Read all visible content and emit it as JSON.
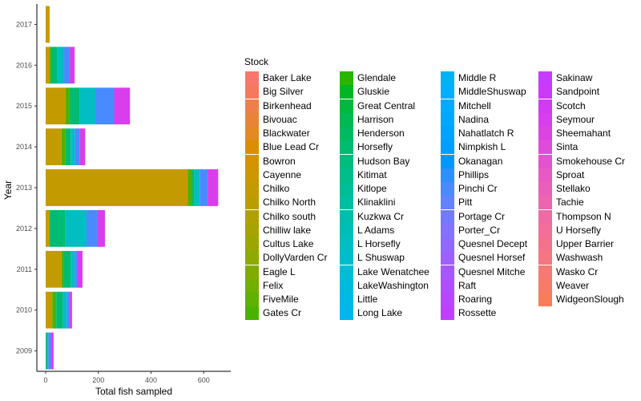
{
  "chart_data": {
    "type": "bar",
    "orientation": "horizontal",
    "stacked": true,
    "xlabel": "Total fish sampled",
    "ylabel": "Year",
    "xlim": [
      0,
      860
    ],
    "xticks": [
      0,
      200,
      400,
      600,
      800
    ],
    "categories": [
      "2009",
      "2010",
      "2011",
      "2012",
      "2013",
      "2014",
      "2015",
      "2016",
      "2017"
    ],
    "grid": false,
    "legend": {
      "title": "Stock",
      "position": "right",
      "columns": 4
    },
    "series": [
      {
        "name": "Baker Lake",
        "color": "#F8766D",
        "values": [
          0,
          0,
          0,
          0,
          0,
          0,
          0,
          0,
          0
        ]
      },
      {
        "name": "Big Silver",
        "color": "#F47A5B",
        "values": [
          0,
          0,
          0,
          0,
          0,
          0,
          0,
          0,
          0
        ]
      },
      {
        "name": "Birkenhead",
        "color": "#EF7F4A",
        "values": [
          0,
          0,
          0,
          0,
          0,
          0,
          0,
          0,
          0
        ]
      },
      {
        "name": "Bivouac",
        "color": "#E98437",
        "values": [
          0,
          0,
          0,
          0,
          0,
          0,
          0,
          0,
          0
        ]
      },
      {
        "name": "Blackwater",
        "color": "#E38A22",
        "values": [
          0,
          0,
          0,
          0,
          0,
          0,
          0,
          0,
          0
        ]
      },
      {
        "name": "Blue Lead Cr",
        "color": "#DC8E00",
        "values": [
          0,
          0,
          0,
          0,
          0,
          0,
          0,
          0,
          0
        ]
      },
      {
        "name": "Bowron",
        "color": "#D49300",
        "values": [
          0,
          0,
          0,
          0,
          0,
          0,
          0,
          0,
          0
        ]
      },
      {
        "name": "Cayenne",
        "color": "#CC9700",
        "values": [
          0,
          0,
          0,
          0,
          0,
          0,
          0,
          0,
          0
        ]
      },
      {
        "name": "Chilko",
        "color": "#C39A00",
        "values": [
          0,
          25,
          60,
          15,
          540,
          60,
          75,
          15,
          15
        ]
      },
      {
        "name": "Chilko North",
        "color": "#BA9E00",
        "values": [
          0,
          0,
          0,
          0,
          0,
          0,
          0,
          0,
          0
        ]
      },
      {
        "name": "Chilko south",
        "color": "#B0A100",
        "values": [
          0,
          0,
          0,
          0,
          0,
          0,
          0,
          0,
          0
        ]
      },
      {
        "name": "Chilliw lake",
        "color": "#A5A400",
        "values": [
          0,
          0,
          0,
          0,
          0,
          0,
          0,
          0,
          0
        ]
      },
      {
        "name": "Cultus Lake",
        "color": "#9AA700",
        "values": [
          0,
          0,
          0,
          0,
          0,
          0,
          0,
          0,
          0
        ]
      },
      {
        "name": "DollyVarden Cr",
        "color": "#8EAA00",
        "values": [
          0,
          0,
          0,
          0,
          0,
          0,
          0,
          0,
          0
        ]
      },
      {
        "name": "Eagle L",
        "color": "#80AC00",
        "values": [
          0,
          0,
          0,
          0,
          0,
          0,
          0,
          0,
          0
        ]
      },
      {
        "name": "Felix",
        "color": "#71AF00",
        "values": [
          0,
          0,
          0,
          0,
          0,
          0,
          0,
          0,
          0
        ]
      },
      {
        "name": "FiveMile",
        "color": "#60B100",
        "values": [
          0,
          0,
          0,
          0,
          0,
          0,
          0,
          0,
          0
        ]
      },
      {
        "name": "Gates Cr",
        "color": "#4BB300",
        "values": [
          0,
          15,
          10,
          0,
          15,
          15,
          15,
          5,
          0
        ]
      },
      {
        "name": "Glendale",
        "color": "#2BB500",
        "values": [
          0,
          0,
          0,
          0,
          0,
          0,
          0,
          0,
          0
        ]
      },
      {
        "name": "Gluskie",
        "color": "#00B624",
        "values": [
          0,
          0,
          0,
          0,
          0,
          0,
          0,
          0,
          0
        ]
      },
      {
        "name": "Great Central",
        "color": "#00B83E",
        "values": [
          0,
          0,
          0,
          0,
          0,
          0,
          0,
          0,
          0
        ]
      },
      {
        "name": "Harrison",
        "color": "#00B952",
        "values": [
          0,
          0,
          0,
          0,
          0,
          0,
          0,
          0,
          0
        ]
      },
      {
        "name": "Henderson",
        "color": "#00BA62",
        "values": [
          0,
          0,
          0,
          0,
          0,
          0,
          0,
          0,
          0
        ]
      },
      {
        "name": "Horsefly",
        "color": "#00BB71",
        "values": [
          5,
          25,
          25,
          60,
          10,
          20,
          40,
          25,
          0
        ]
      },
      {
        "name": "Hudson Bay",
        "color": "#00BC7E",
        "values": [
          0,
          0,
          0,
          0,
          0,
          0,
          0,
          0,
          0
        ]
      },
      {
        "name": "Kitimat",
        "color": "#00BD8B",
        "values": [
          0,
          0,
          0,
          0,
          0,
          0,
          0,
          0,
          0
        ]
      },
      {
        "name": "Kitlope",
        "color": "#00BD97",
        "values": [
          0,
          0,
          0,
          0,
          0,
          0,
          0,
          0,
          0
        ]
      },
      {
        "name": "Klinaklini",
        "color": "#00BEA2",
        "values": [
          0,
          0,
          0,
          0,
          0,
          0,
          0,
          0,
          0
        ]
      },
      {
        "name": "Kuzkwa Cr",
        "color": "#00BEAD",
        "values": [
          0,
          0,
          0,
          0,
          0,
          0,
          0,
          0,
          0
        ]
      },
      {
        "name": "L Adams",
        "color": "#00BEB7",
        "values": [
          0,
          0,
          0,
          0,
          0,
          0,
          0,
          0,
          0
        ]
      },
      {
        "name": "L Horsefly",
        "color": "#00BEC1",
        "values": [
          5,
          15,
          15,
          80,
          20,
          15,
          60,
          25,
          0
        ]
      },
      {
        "name": "L Shuswap",
        "color": "#00BDCB",
        "values": [
          0,
          0,
          0,
          0,
          0,
          0,
          0,
          0,
          0
        ]
      },
      {
        "name": "Lake Wenatchee",
        "color": "#00BCD4",
        "values": [
          0,
          0,
          0,
          0,
          0,
          0,
          0,
          0,
          0
        ]
      },
      {
        "name": "LakeWashington",
        "color": "#00BADD",
        "values": [
          0,
          0,
          0,
          0,
          0,
          0,
          0,
          0,
          0
        ]
      },
      {
        "name": "Little",
        "color": "#00B8E6",
        "values": [
          0,
          0,
          0,
          0,
          0,
          0,
          0,
          0,
          0
        ]
      },
      {
        "name": "Long Lake",
        "color": "#00B6ED",
        "values": [
          0,
          0,
          0,
          0,
          0,
          0,
          0,
          0,
          0
        ]
      },
      {
        "name": "Middle R",
        "color": "#00B3F4",
        "values": [
          0,
          0,
          0,
          0,
          0,
          0,
          0,
          0,
          0
        ]
      },
      {
        "name": "MiddleShuswap",
        "color": "#00B0FA",
        "values": [
          0,
          0,
          0,
          0,
          0,
          0,
          0,
          0,
          0
        ]
      },
      {
        "name": "Mitchell",
        "color": "#00ACFF",
        "values": [
          0,
          0,
          0,
          0,
          0,
          0,
          0,
          0,
          0
        ]
      },
      {
        "name": "Nadina",
        "color": "#00A8FF",
        "values": [
          0,
          0,
          0,
          0,
          0,
          0,
          0,
          0,
          0
        ]
      },
      {
        "name": "Nahatlatch R",
        "color": "#00A3FF",
        "values": [
          0,
          0,
          0,
          0,
          0,
          0,
          0,
          0,
          0
        ]
      },
      {
        "name": "Nimpkish L",
        "color": "#009EFF",
        "values": [
          0,
          0,
          0,
          0,
          0,
          0,
          0,
          0,
          0
        ]
      },
      {
        "name": "Okanagan",
        "color": "#0098FF",
        "values": [
          0,
          0,
          0,
          0,
          0,
          0,
          0,
          0,
          0
        ]
      },
      {
        "name": "Phillips",
        "color": "#2A91FF",
        "values": [
          0,
          0,
          0,
          0,
          0,
          0,
          0,
          0,
          0
        ]
      },
      {
        "name": "Pinchi Cr",
        "color": "#4A8AFF",
        "values": [
          10,
          10,
          10,
          40,
          30,
          20,
          70,
          20,
          0
        ]
      },
      {
        "name": "Pitt",
        "color": "#6282FF",
        "values": [
          0,
          0,
          0,
          0,
          0,
          0,
          0,
          0,
          0
        ]
      },
      {
        "name": "Portage Cr",
        "color": "#747AFF",
        "values": [
          0,
          0,
          0,
          0,
          0,
          0,
          0,
          0,
          0
        ]
      },
      {
        "name": "Porter_Cr",
        "color": "#8472FF",
        "values": [
          0,
          0,
          0,
          0,
          0,
          0,
          0,
          0,
          0
        ]
      },
      {
        "name": "Quesnel Decept",
        "color": "#9169FF",
        "values": [
          0,
          0,
          0,
          0,
          0,
          0,
          0,
          0,
          0
        ]
      },
      {
        "name": "Quesnel Horsef",
        "color": "#9D60FF",
        "values": [
          0,
          0,
          0,
          0,
          0,
          0,
          0,
          0,
          0
        ]
      },
      {
        "name": "Quesnel Mitche",
        "color": "#A757FF",
        "values": [
          0,
          0,
          0,
          0,
          0,
          0,
          0,
          0,
          0
        ]
      },
      {
        "name": "Raft",
        "color": "#B04EFF",
        "values": [
          0,
          0,
          0,
          0,
          0,
          0,
          0,
          0,
          0
        ]
      },
      {
        "name": "Roaring",
        "color": "#B846FF",
        "values": [
          0,
          0,
          0,
          0,
          0,
          0,
          0,
          0,
          0
        ]
      },
      {
        "name": "Rossette",
        "color": "#BF3FFF",
        "values": [
          0,
          0,
          0,
          0,
          0,
          0,
          0,
          0,
          0
        ]
      },
      {
        "name": "Sakinaw",
        "color": "#C63BFF",
        "values": [
          0,
          0,
          0,
          0,
          0,
          0,
          0,
          0,
          0
        ]
      },
      {
        "name": "Sandpoint",
        "color": "#CC39FA",
        "values": [
          0,
          0,
          0,
          0,
          0,
          0,
          0,
          0,
          0
        ]
      },
      {
        "name": "Scotch",
        "color": "#D23AF3",
        "values": [
          0,
          0,
          0,
          0,
          0,
          0,
          0,
          0,
          0
        ]
      },
      {
        "name": "Seymour",
        "color": "#D83EEB",
        "values": [
          10,
          10,
          20,
          30,
          40,
          20,
          60,
          20,
          0
        ]
      },
      {
        "name": "Sheemahant",
        "color": "#DC44E2",
        "values": [
          0,
          0,
          0,
          0,
          0,
          0,
          0,
          0,
          0
        ]
      },
      {
        "name": "Sinta",
        "color": "#E04BD9",
        "values": [
          0,
          0,
          0,
          0,
          0,
          0,
          0,
          0,
          0
        ]
      },
      {
        "name": "Smokehouse Cr",
        "color": "#E452CF",
        "values": [
          0,
          0,
          0,
          0,
          0,
          0,
          0,
          0,
          0
        ]
      },
      {
        "name": "Sproat",
        "color": "#E759C4",
        "values": [
          0,
          0,
          0,
          0,
          0,
          0,
          0,
          0,
          0
        ]
      },
      {
        "name": "Stellako",
        "color": "#EA5FBA",
        "values": [
          0,
          0,
          0,
          0,
          0,
          0,
          0,
          0,
          0
        ]
      },
      {
        "name": "Tachie",
        "color": "#EC65AF",
        "values": [
          0,
          0,
          0,
          0,
          0,
          0,
          0,
          0,
          0
        ]
      },
      {
        "name": "Thompson N",
        "color": "#EF6BA3",
        "values": [
          0,
          0,
          0,
          0,
          0,
          0,
          0,
          0,
          0
        ]
      },
      {
        "name": "U Horsefly",
        "color": "#F16F98",
        "values": [
          0,
          0,
          0,
          0,
          0,
          0,
          0,
          0,
          0
        ]
      },
      {
        "name": "Upper Barrier",
        "color": "#F3738C",
        "values": [
          0,
          0,
          0,
          0,
          0,
          0,
          0,
          0,
          0
        ]
      },
      {
        "name": "Washwash",
        "color": "#F57680",
        "values": [
          0,
          0,
          0,
          0,
          0,
          0,
          0,
          0,
          0
        ]
      },
      {
        "name": "Wasko Cr",
        "color": "#F67973",
        "values": [
          0,
          0,
          0,
          0,
          0,
          0,
          0,
          0,
          0
        ]
      },
      {
        "name": "Weaver",
        "color": "#F77B66",
        "values": [
          0,
          0,
          0,
          0,
          0,
          0,
          0,
          0,
          0
        ]
      },
      {
        "name": "WidgeonSlough",
        "color": "#F87D59",
        "values": [
          0,
          0,
          0,
          0,
          0,
          0,
          0,
          0,
          0
        ]
      }
    ]
  }
}
